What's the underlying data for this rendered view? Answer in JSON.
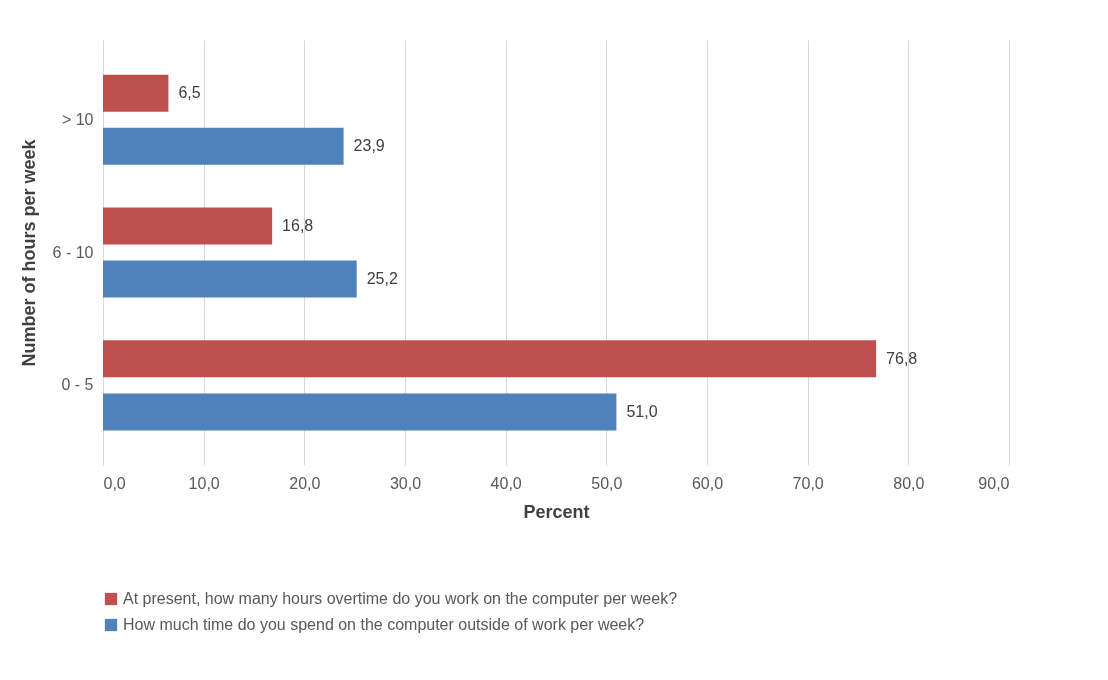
{
  "chart_data": {
    "type": "bar",
    "orientation": "horizontal",
    "xlabel": "Percent",
    "ylabel": "Number of hours per week",
    "categories": [
      "> 10",
      "6 - 10",
      "0 - 5"
    ],
    "series": [
      {
        "name": "At present, how many hours overtime do you work on the computer per week?",
        "color": "#c0504d",
        "values": [
          6.5,
          16.8,
          76.8
        ],
        "value_labels": [
          "6,5",
          "16,8",
          "76,8"
        ]
      },
      {
        "name": "How much time do you spend on the computer outside of work per week?",
        "color": "#4f81bd",
        "values": [
          23.9,
          25.2,
          51.0
        ],
        "value_labels": [
          "23,9",
          "25,2",
          "51,0"
        ]
      }
    ],
    "xlim": [
      0,
      90
    ],
    "xticks": [
      {
        "value": 0,
        "label": "0,0"
      },
      {
        "value": 10,
        "label": "10,0"
      },
      {
        "value": 20,
        "label": "20,0"
      },
      {
        "value": 30,
        "label": "30,0"
      },
      {
        "value": 40,
        "label": "40,0"
      },
      {
        "value": 50,
        "label": "50,0"
      },
      {
        "value": 60,
        "label": "60,0"
      },
      {
        "value": 70,
        "label": "70,0"
      },
      {
        "value": 80,
        "label": "80,0"
      },
      {
        "value": 90,
        "label": "90,0"
      }
    ],
    "grid": "x",
    "legend": "bottom"
  }
}
